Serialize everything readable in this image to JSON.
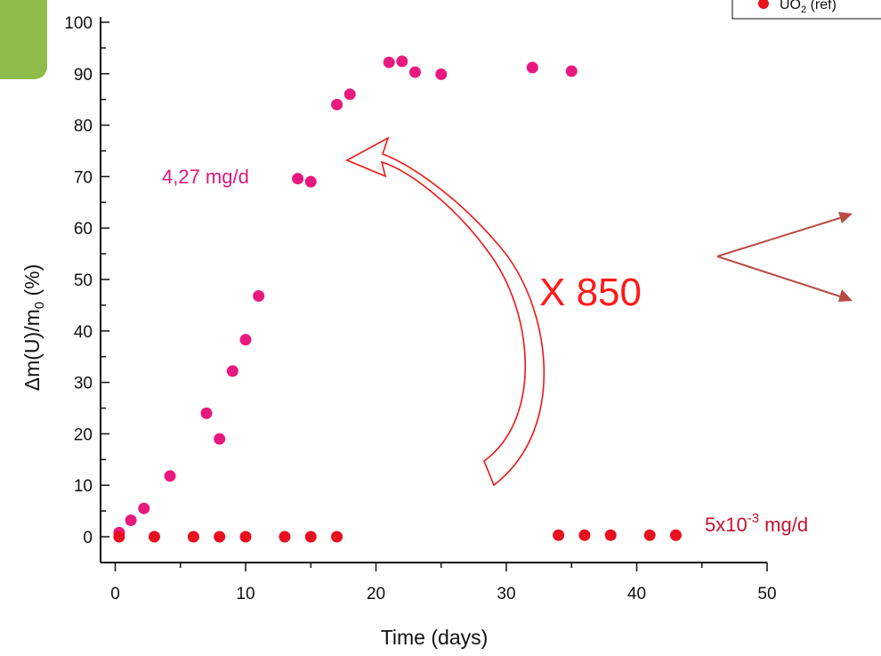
{
  "chart_data": {
    "type": "scatter",
    "xlabel": "Time   (days)",
    "ylabel": "Δm(U)/m",
    "ylabel_sub": "0",
    "ylabel_suffix": " (%)",
    "xlim": [
      0,
      50
    ],
    "ylim": [
      0,
      100
    ],
    "x_ticks": [
      "0",
      "10",
      "20",
      "30",
      "40",
      "50"
    ],
    "y_ticks": [
      "0",
      "10",
      "20",
      "30",
      "40",
      "50",
      "60",
      "70",
      "80",
      "90",
      "100"
    ],
    "grid": false,
    "legend_position": "top-right",
    "legend": {
      "label": "UO",
      "sub": "2",
      "suffix": " (ref)"
    },
    "series": [
      {
        "color": "#e8197e",
        "x": [
          0.3,
          1.2,
          2.2,
          4.2,
          7,
          8,
          9,
          10,
          11,
          14,
          15,
          17,
          18,
          21,
          22,
          23,
          25,
          32,
          35
        ],
        "y": [
          0.8,
          3.2,
          5.5,
          11.8,
          24,
          19,
          32.2,
          38.3,
          46.8,
          69.6,
          69,
          84,
          86,
          92.2,
          92.4,
          90.3,
          89.9,
          91.2,
          90.5
        ]
      },
      {
        "name": "UO2 (ref)",
        "color": "#e8101e",
        "x": [
          0.3,
          3,
          6,
          8,
          10,
          13,
          15,
          17,
          34,
          36,
          38,
          41,
          43
        ],
        "y": [
          0,
          0,
          0,
          0,
          0,
          0,
          0,
          0,
          0.3,
          0.3,
          0.3,
          0.3,
          0.3
        ]
      }
    ],
    "annotations": {
      "rate_high": "4,27 mg/d",
      "rate_low_base": "5x10",
      "rate_low_exp": "-3",
      "rate_low_unit": " mg/d",
      "factor": "X 850"
    }
  }
}
